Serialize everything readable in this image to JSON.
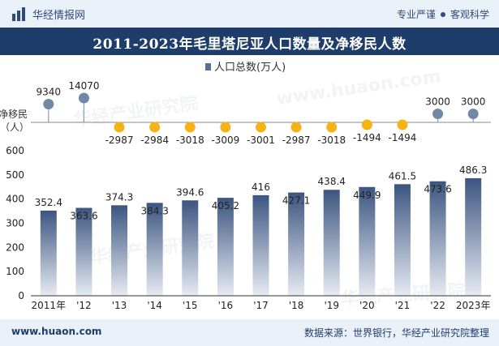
{
  "brand": {
    "name": "华经情报网",
    "tagline_left": "专业严谨",
    "tagline_right": "客观科学"
  },
  "title": "2011-2023年毛里塔尼亚人口数量及净移民人数",
  "footer": {
    "url": "www.huaon.com",
    "source": "数据来源：世界银行，华经产业研究院整理"
  },
  "watermarks": [
    "华经产业研究院",
    "www.huaon.com"
  ],
  "chart_data": [
    {
      "type": "bar",
      "title": "",
      "legend": {
        "labels": [
          "人口总数(万人)"
        ],
        "placement": "top-center"
      },
      "categories": [
        "2011年",
        "'12",
        "'13",
        "'14",
        "'15",
        "'16",
        "'17",
        "'18",
        "'19",
        "'20",
        "'21",
        "'22",
        "2023年"
      ],
      "series": [
        {
          "name": "人口总数(万人)",
          "values": [
            352.4,
            363.6,
            374.3,
            384.3,
            394.6,
            405.2,
            416,
            427.1,
            438.4,
            449.9,
            461.5,
            473.6,
            486.3
          ]
        }
      ],
      "data_labels": [
        "352.4",
        "363.6",
        "374.3",
        "384.3",
        "394.6",
        "405.2",
        "416",
        "427.1",
        "438.4",
        "449.9",
        "461.5",
        "473.6",
        "486.3"
      ],
      "ylim": [
        0,
        600
      ],
      "yticks": [
        "0",
        "100",
        "200",
        "300",
        "400",
        "500",
        "600"
      ],
      "grid": false,
      "colors": {
        "bar_top": "#3c5580",
        "bar_bottom": "#e6ebf3"
      }
    },
    {
      "type": "scatter",
      "ylabel": "净移民（人）",
      "categories": [
        "2011年",
        "'12",
        "'13",
        "'14",
        "'15",
        "'16",
        "'17",
        "'18",
        "'19",
        "'20",
        "'21",
        "'22",
        "2023年"
      ],
      "series": [
        {
          "name": "净移民",
          "values": [
            9340,
            14070,
            -2987,
            -2984,
            -3018,
            -3009,
            -3001,
            -2987,
            -3018,
            -1494,
            -1494,
            3000,
            3000
          ]
        }
      ],
      "data_labels": [
        "9340",
        "14070",
        "-2987",
        "-2984",
        "-3018",
        "-3009",
        "-3001",
        "-2987",
        "-3018",
        "-1494",
        "-1494",
        "3000",
        "3000"
      ],
      "colors": {
        "positive": "#7388a6",
        "negative": "#f5b316"
      }
    }
  ]
}
